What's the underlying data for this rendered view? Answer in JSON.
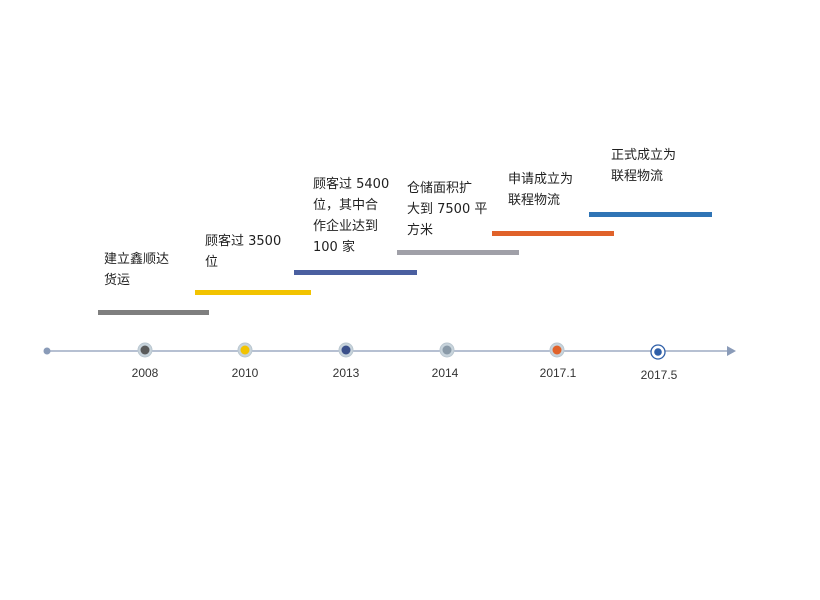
{
  "timeline": {
    "events": [
      {
        "year": "2008",
        "text_line1": "建立鑫顺达",
        "text_line2": "货运",
        "text_line3": "",
        "text_line4": "",
        "color": "#7f7f7f",
        "marker_fill": "#5a5a5a"
      },
      {
        "year": "2010",
        "text_line1": "顾客过 3500",
        "text_line2": "位",
        "text_line3": "",
        "text_line4": "",
        "color": "#f2c300",
        "marker_fill": "#f2c300"
      },
      {
        "year": "2013",
        "text_line1": "顾客过 5400",
        "text_line2": "位，其中合",
        "text_line3": "作企业达到",
        "text_line4": "100 家",
        "color": "#4a5fa0",
        "marker_fill": "#3a4f8a"
      },
      {
        "year": "2014",
        "text_line1": "仓储面积扩",
        "text_line2": "大到 7500 平",
        "text_line3": "方米",
        "text_line4": "",
        "color": "#a0a0a8",
        "marker_fill": "#8a9aa8"
      },
      {
        "year": "2017.1",
        "text_line1": "申请成立为",
        "text_line2": "联程物流",
        "text_line3": "",
        "text_line4": "",
        "color": "#e0622a",
        "marker_fill": "#e0622a"
      },
      {
        "year": "2017.5",
        "text_line1": "正式成立为",
        "text_line2": "联程物流",
        "text_line3": "",
        "text_line4": "",
        "color": "#2f74b5",
        "marker_fill": "#2f5fa8"
      }
    ],
    "axis_color": "#8a9bb8"
  }
}
